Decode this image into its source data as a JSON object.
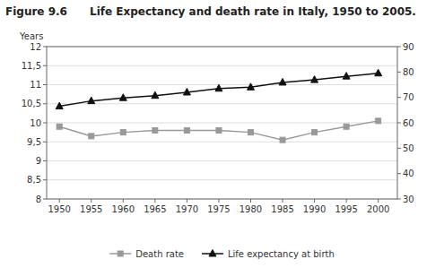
{
  "chart_data": {
    "type": "line",
    "title": "Figure 9.6      Life Expectancy and death rate in Italy, 1950 to 2005.",
    "ylabel": "Years",
    "x": [
      1950,
      1955,
      1960,
      1965,
      1970,
      1975,
      1980,
      1985,
      1990,
      1995,
      2000
    ],
    "xlim": [
      1948,
      2003
    ],
    "xticks": [
      1950,
      1955,
      1960,
      1965,
      1970,
      1975,
      1980,
      1985,
      1990,
      1995,
      2000
    ],
    "ylim": [
      8,
      12
    ],
    "yticks": [
      8,
      {
        "value": 8.5,
        "label": "8,5"
      },
      9,
      {
        "value": 9.5,
        "label": "9,5"
      },
      10,
      {
        "value": 10.5,
        "label": "10,5"
      },
      11,
      {
        "value": 11.5,
        "label": "11,5"
      },
      12
    ],
    "y2lim": [
      30,
      90
    ],
    "y2ticks": [
      30,
      40,
      50,
      60,
      70,
      80,
      90
    ],
    "grid": true,
    "legend": "bottom",
    "series": [
      {
        "name": "Death rate",
        "color": "#999999",
        "marker": "square",
        "values": [
          9.9,
          9.65,
          9.75,
          9.8,
          9.8,
          9.8,
          9.75,
          9.55,
          9.75,
          9.9,
          10.05
        ]
      },
      {
        "name": "Life expectancy at birth",
        "color": "#111111",
        "marker": "triangle",
        "axis": "y2",
        "values": [
          66.5,
          68.6,
          69.8,
          70.7,
          72.0,
          73.5,
          74.0,
          75.9,
          76.9,
          78.3,
          79.5
        ]
      }
    ]
  }
}
